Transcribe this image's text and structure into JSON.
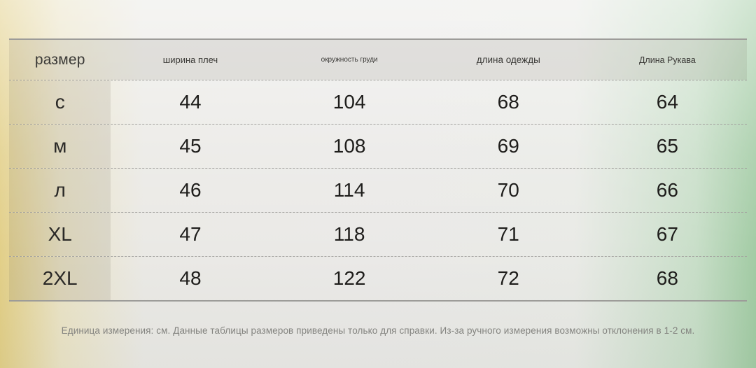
{
  "page": {
    "background_colors": {
      "left_edge": "#e2cf88",
      "center": "#eae9e7",
      "right_edge": "#a2cba4"
    },
    "table_shade_color": "rgba(108,102,82,0.13)",
    "text_color": "#1e1d1b"
  },
  "table": {
    "columns": [
      {
        "key": "size",
        "label": "размер"
      },
      {
        "key": "shoulder",
        "label": "ширина плеч"
      },
      {
        "key": "chest",
        "label": "окружность груди"
      },
      {
        "key": "length",
        "label": "длина одежды"
      },
      {
        "key": "sleeve",
        "label": "Длина Рукава"
      }
    ],
    "rows": [
      {
        "size": "с",
        "values": [
          "44",
          "104",
          "68",
          "64"
        ]
      },
      {
        "size": "м",
        "values": [
          "45",
          "108",
          "69",
          "65"
        ]
      },
      {
        "size": "л",
        "values": [
          "46",
          "114",
          "70",
          "66"
        ]
      },
      {
        "size": "XL",
        "values": [
          "47",
          "118",
          "71",
          "67"
        ]
      },
      {
        "size": "2XL",
        "values": [
          "48",
          "122",
          "72",
          "68"
        ]
      }
    ]
  },
  "footer": {
    "note": "Единица измерения: см. Данные таблицы размеров приведены только для справки. Из-за ручного измерения возможны отклонения в 1-2 см."
  }
}
